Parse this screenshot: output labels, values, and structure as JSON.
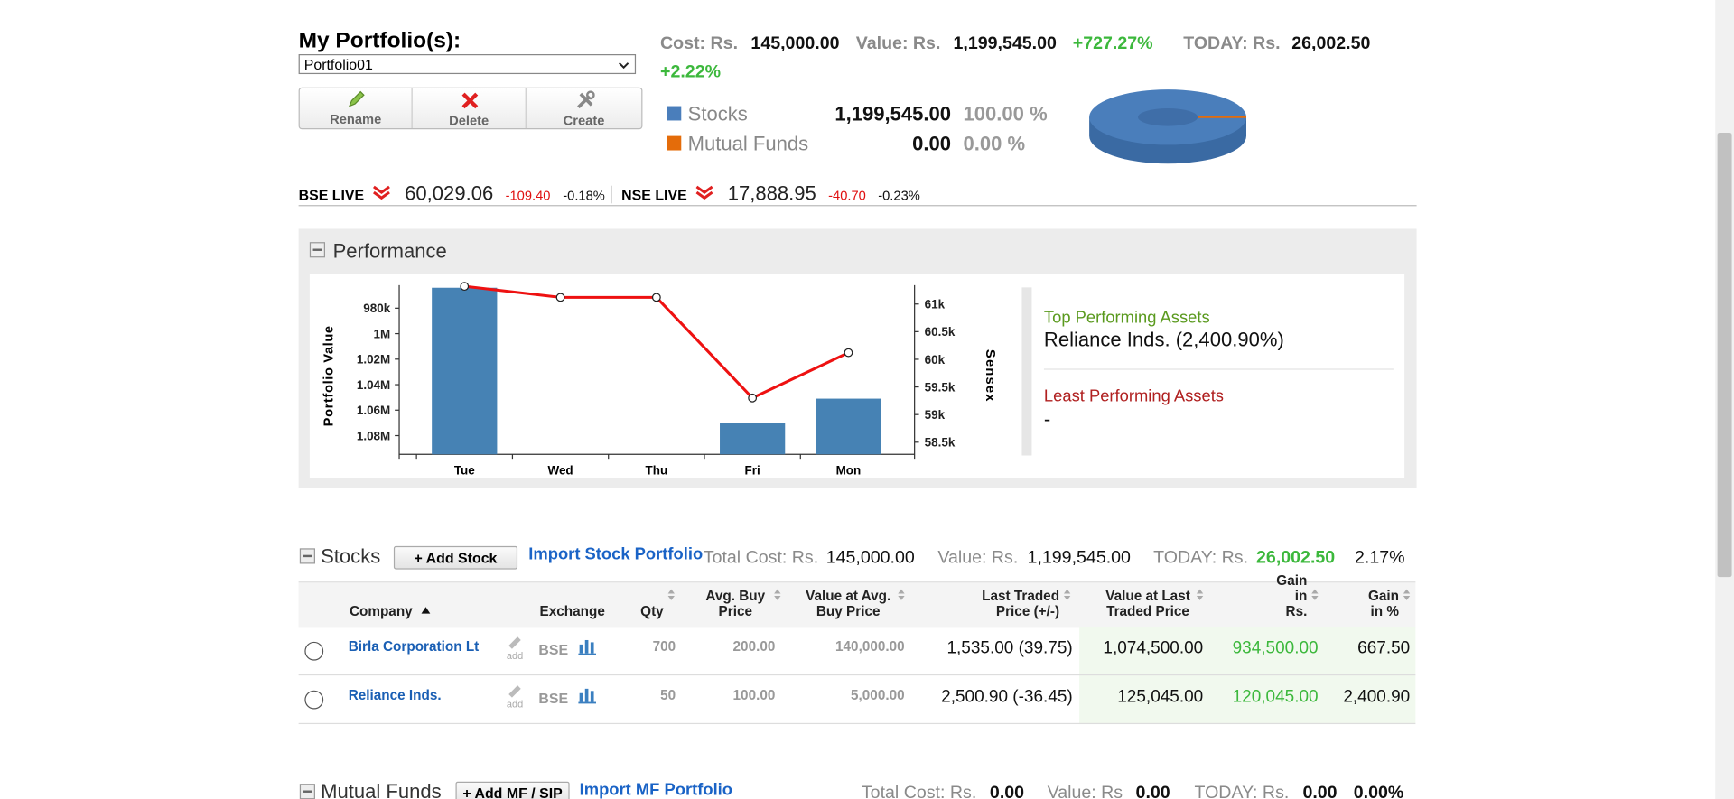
{
  "portfolio": {
    "heading": "My Portfolio(s):",
    "selected": "Portfolio01",
    "buttons": [
      "Rename",
      "Delete",
      "Create"
    ]
  },
  "summary": {
    "cost_label": "Cost: Rs.",
    "cost": "145,000.00",
    "value_label": "Value: Rs.",
    "value": "1,199,545.00",
    "value_change": "+727.27%",
    "today_label": "TODAY: Rs.",
    "today": "26,002.50",
    "today_change": "+2.22%"
  },
  "allocation": {
    "type": "pie",
    "categories": [
      "Stocks",
      "Mutual Funds"
    ],
    "values": [
      1199545,
      0
    ],
    "value_labels": [
      "1,199,545.00",
      "0.00"
    ],
    "percent_labels": [
      "100.00 %",
      "0.00 %"
    ],
    "colors": [
      "#4a7ebb",
      "#e46c0a"
    ]
  },
  "market": [
    {
      "name": "BSE LIVE",
      "value": "60,029.06",
      "change": "-109.40",
      "change_pct": "-0.18%"
    },
    {
      "name": "NSE LIVE",
      "value": "17,888.95",
      "change": "-40.70",
      "change_pct": "-0.23%"
    }
  ],
  "performance": {
    "title": "Performance",
    "chart": {
      "type": "bar",
      "categories": [
        "Tue",
        "Wed",
        "Thu",
        "Fri",
        "Mon"
      ],
      "ylabel": "Portfolio Value",
      "y2label": "Sensex",
      "ylim": [
        1094700,
        962000
      ],
      "yticks": [
        {
          "value": 980000,
          "label": "980k"
        },
        {
          "value": 1000000,
          "label": "1M"
        },
        {
          "value": 1020000,
          "label": "1.02M"
        },
        {
          "value": 1040000,
          "label": "1.04M"
        },
        {
          "value": 1060000,
          "label": "1.06M"
        },
        {
          "value": 1080000,
          "label": "1.08M"
        }
      ],
      "y2lim": [
        58280,
        61340
      ],
      "y2ticks": [
        {
          "value": 61000,
          "label": "61k"
        },
        {
          "value": 60500,
          "label": "60.5k"
        },
        {
          "value": 60000,
          "label": "60k"
        },
        {
          "value": 59500,
          "label": "59.5k"
        },
        {
          "value": 59000,
          "label": "59k"
        },
        {
          "value": 58500,
          "label": "58.5k"
        }
      ],
      "series": [
        {
          "type": "bar",
          "color": "#4682b4",
          "values": [
            964000,
            null,
            null,
            1070000,
            1051000
          ]
        },
        {
          "type": "line",
          "axis": "y2",
          "color": "#ee1111",
          "values": [
            61320,
            61120,
            61120,
            59300,
            60120
          ]
        }
      ]
    },
    "top_label": "Top Performing Assets",
    "top_value": "Reliance Inds. (2,400.90%)",
    "least_label": "Least Performing Assets",
    "least_value": "-"
  },
  "stocks": {
    "title": "Stocks",
    "add_button": "+ Add Stock",
    "import_link": "Import Stock Portfolio",
    "total_cost_label": "Total Cost: Rs.",
    "total_cost": "145,000.00",
    "value_label": "Value: Rs.",
    "value": "1,199,545.00",
    "today_label": "TODAY: Rs.",
    "today": "26,002.50",
    "today_pct": "2.17%",
    "columns": [
      "Company",
      "Exchange",
      "Qty",
      "Avg. Buy Price",
      "Value at Avg. Buy Price",
      "Last Traded Price (+/-)",
      "Value at Last Traded Price",
      "Gain in Rs.",
      "Gain in %"
    ],
    "rows": [
      {
        "company": "Birla Corporation Lt",
        "edit": "add",
        "exchange": "BSE",
        "qty": "700",
        "avg_buy_price": "200.00",
        "value_at_avg": "140,000.00",
        "last_traded": "1,535.00 (39.75)",
        "value_at_last": "1,074,500.00",
        "gain_rs": "934,500.00",
        "gain_pct": "667.50"
      },
      {
        "company": "Reliance Inds.",
        "edit": "add",
        "exchange": "BSE",
        "qty": "50",
        "avg_buy_price": "100.00",
        "value_at_avg": "5,000.00",
        "last_traded": "2,500.90 (-36.45)",
        "value_at_last": "125,045.00",
        "gain_rs": "120,045.00",
        "gain_pct": "2,400.90"
      }
    ]
  },
  "mutual_funds": {
    "title": "Mutual Funds",
    "add_button": "+ Add MF / SIP",
    "import_link": "Import MF Portfolio",
    "total_cost_label": "Total Cost: Rs.",
    "total_cost": "0.00",
    "value_label": "Value: Rs",
    "value": "0.00",
    "today_label": "TODAY: Rs.",
    "today": "0.00",
    "today_pct": "0.00%"
  }
}
